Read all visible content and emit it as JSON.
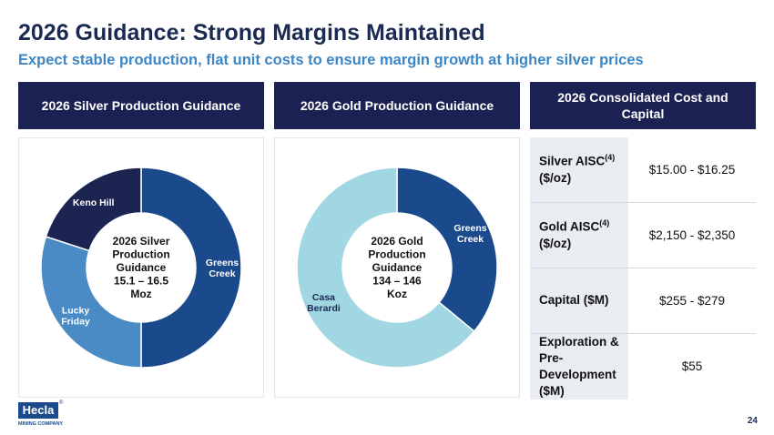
{
  "title": "2026 Guidance: Strong Margins Maintained",
  "subtitle": "Expect stable production, flat unit costs to ensure margin growth at higher silver prices",
  "headers": {
    "silver": "2026 Silver Production Guidance",
    "gold": "2026 Gold Production Guidance",
    "cost": "2026 Consolidated Cost and Capital"
  },
  "chart_data": [
    {
      "type": "pie",
      "donut": true,
      "center_text": [
        "2026 Silver",
        "Production",
        "Guidance",
        "15.1 – 16.5",
        "Moz"
      ],
      "slices": [
        {
          "label": "Greens Creek",
          "label_lines": [
            "Greens",
            "Creek"
          ],
          "value": 50,
          "color": "#1b4a8c"
        },
        {
          "label": "Lucky Friday",
          "label_lines": [
            "Lucky",
            "Friday"
          ],
          "value": 30,
          "color": "#4a8bc6"
        },
        {
          "label": "Keno Hill",
          "label_lines": [
            "Keno Hill"
          ],
          "value": 20,
          "color": "#1c2552"
        }
      ]
    },
    {
      "type": "pie",
      "donut": true,
      "center_text": [
        "2026 Gold",
        "Production",
        "Guidance",
        "134 – 146",
        "Koz"
      ],
      "slices": [
        {
          "label": "Greens Creek",
          "label_lines": [
            "Greens",
            "Creek"
          ],
          "value": 36,
          "color": "#1b4a8c"
        },
        {
          "label": "Casa Berardi",
          "label_lines": [
            "Casa",
            "Berardi"
          ],
          "value": 64,
          "color": "#a1d6e3"
        }
      ]
    }
  ],
  "cost_table": [
    {
      "label": "Silver AISC",
      "sup": "(4)",
      "unit": "($/oz)",
      "value": "$15.00 - $16.25"
    },
    {
      "label": "Gold AISC",
      "sup": "(4)",
      "unit": "($/oz)",
      "value": "$2,150 - $2,350"
    },
    {
      "label": "Capital ($M)",
      "sup": "",
      "unit": "",
      "value": "$255 - $279"
    },
    {
      "label": "Exploration & Pre-Development ($M)",
      "sup": "",
      "unit": "",
      "value": "$55"
    }
  ],
  "logo": {
    "name": "Hecla",
    "sub": "MINING COMPANY",
    "mark": "®"
  },
  "page_number": "24",
  "colors": {
    "navy": "#1b2152",
    "accent_blue": "#3c86c4"
  }
}
